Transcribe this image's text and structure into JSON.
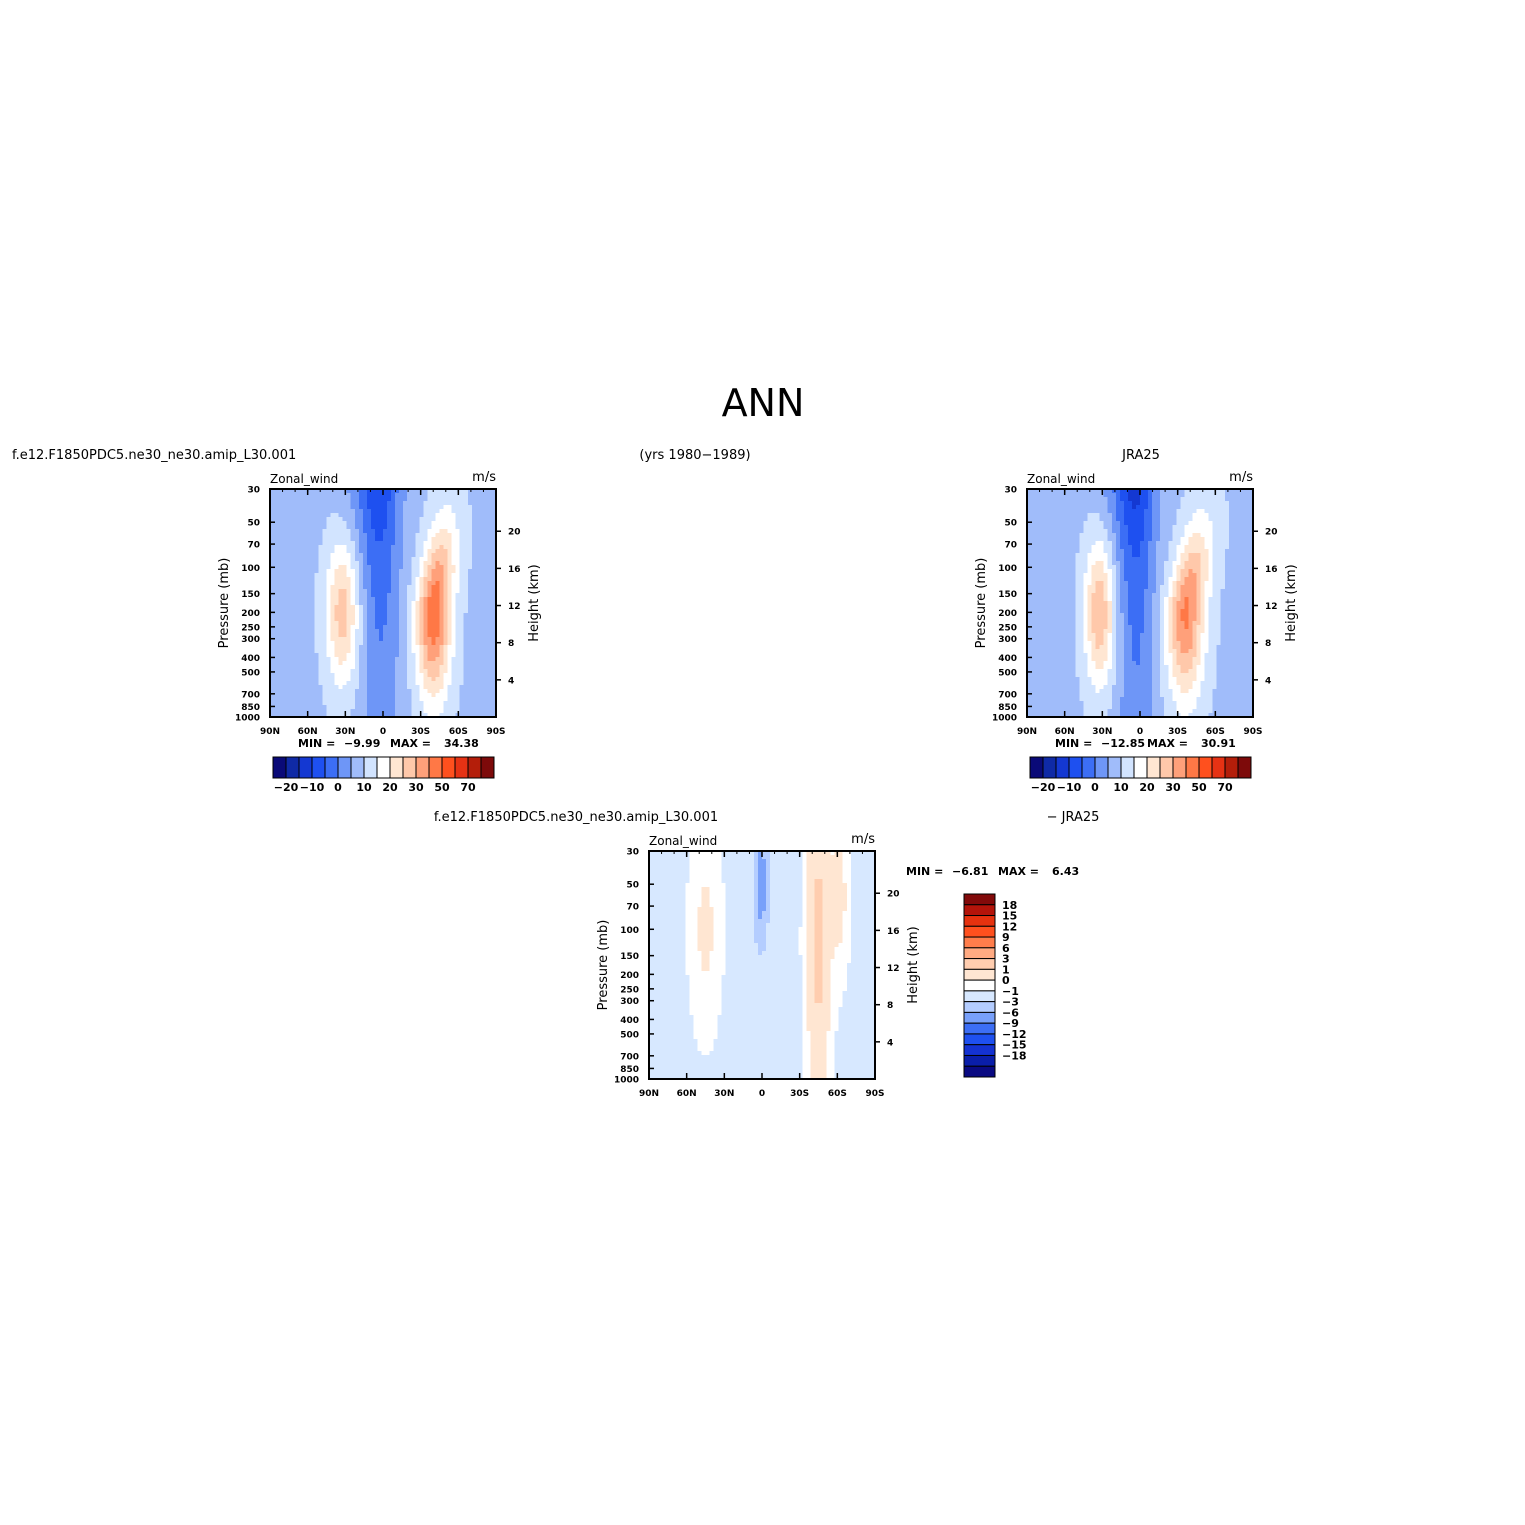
{
  "page_title": "ANN",
  "header": {
    "left_case": "f.e12.F1850PDC5.ne30_ne30.amip_L30.001",
    "center_years": "(yrs 1980−1989)",
    "right_obs": "JRA25",
    "diff_left": "f.e12.F1850PDC5.ne30_ne30.amip_L30.001",
    "diff_right": "− JRA25"
  },
  "colors": {
    "abs_palette": [
      "#0a0a78",
      "#0f2aa6",
      "#1438d2",
      "#1e50f0",
      "#3c6ef5",
      "#6e96f7",
      "#a0bcfa",
      "#d2e4ff",
      "#ffffff",
      "#ffe6d2",
      "#ffc8aa",
      "#ffa07a",
      "#ff7846",
      "#ff501e",
      "#e63214",
      "#b41e0a",
      "#7d0a0a"
    ],
    "diff_palette": [
      "#0a0a82",
      "#0a1eaa",
      "#1432d2",
      "#1e50f0",
      "#3c6ef5",
      "#78a0fa",
      "#b4cdff",
      "#d7e8ff",
      "#ffffff",
      "#ffe6d2",
      "#ffcdaf",
      "#ffaa82",
      "#ff7d4b",
      "#ff501e",
      "#e6320f",
      "#b4140a",
      "#820a0a"
    ]
  },
  "chart_data": [
    {
      "type": "heatmap",
      "name": "model",
      "field_label": "Zonal_wind",
      "units": "m/s",
      "ylabel": "Pressure (mb)",
      "ylabel_right": "Height (km)",
      "x_ticks": [
        "90N",
        "60N",
        "30N",
        "0",
        "30S",
        "60S",
        "90S"
      ],
      "y_ticks": [
        30,
        50,
        70,
        100,
        150,
        200,
        250,
        300,
        400,
        500,
        700,
        850,
        1000
      ],
      "height_ticks": [
        20,
        16,
        12,
        8,
        4
      ],
      "min_label": "MIN =",
      "min_value": "−9.99",
      "max_label": "MAX =",
      "max_value": "34.38",
      "colorbar_labels": [
        "−20",
        "−10",
        "0",
        "10",
        "20",
        "30",
        "50",
        "70"
      ],
      "levels": [
        -25,
        -20,
        -15,
        -10,
        -5,
        0,
        5,
        10,
        15,
        20,
        25,
        30,
        40,
        50,
        60,
        70
      ],
      "features": [
        {
          "kind": "base",
          "value": 4
        },
        {
          "kind": "jet",
          "lat": -40,
          "lat_spread": 14,
          "p_center": 200,
          "p_spread": 1.3,
          "amp": 30,
          "tilt_top": -52
        },
        {
          "kind": "jet",
          "lat": 32,
          "lat_spread": 13,
          "p_center": 200,
          "p_spread": 1.1,
          "amp": 19
        },
        {
          "kind": "easterly",
          "lat": 2,
          "lat_spread": 16,
          "amp": -12
        },
        {
          "kind": "easterly_top",
          "lat": 10,
          "lat_spread": 22,
          "amp": -8
        }
      ]
    },
    {
      "type": "heatmap",
      "name": "obs",
      "field_label": "Zonal_wind",
      "units": "m/s",
      "ylabel": "Pressure (mb)",
      "ylabel_right": "Height (km)",
      "x_ticks": [
        "90N",
        "60N",
        "30N",
        "0",
        "30S",
        "60S",
        "90S"
      ],
      "y_ticks": [
        30,
        50,
        70,
        100,
        150,
        200,
        250,
        300,
        400,
        500,
        700,
        850,
        1000
      ],
      "height_ticks": [
        20,
        16,
        12,
        8,
        4
      ],
      "min_label": "MIN =",
      "min_value": "−12.85",
      "max_label": "MAX =",
      "max_value": "30.91",
      "colorbar_labels": [
        "−20",
        "−10",
        "0",
        "10",
        "20",
        "30",
        "50",
        "70"
      ],
      "levels": [
        -25,
        -20,
        -15,
        -10,
        -5,
        0,
        5,
        10,
        15,
        20,
        25,
        30,
        40,
        50,
        60,
        70
      ],
      "features": [
        {
          "kind": "base",
          "value": 4
        },
        {
          "kind": "jet",
          "lat": -36,
          "lat_spread": 15,
          "p_center": 200,
          "p_spread": 1.3,
          "amp": 27,
          "tilt_top": -52
        },
        {
          "kind": "jet",
          "lat": 32,
          "lat_spread": 12,
          "p_center": 200,
          "p_spread": 1.1,
          "amp": 21
        },
        {
          "kind": "easterly",
          "lat": 3,
          "lat_spread": 15,
          "amp": -13
        },
        {
          "kind": "easterly_top",
          "lat": 10,
          "lat_spread": 22,
          "amp": -9
        }
      ]
    },
    {
      "type": "heatmap",
      "name": "difference",
      "field_label": "Zonal_wind",
      "units": "m/s",
      "ylabel": "Pressure (mb)",
      "ylabel_right": "Height (km)",
      "x_ticks": [
        "90N",
        "60N",
        "30N",
        "0",
        "30S",
        "60S",
        "90S"
      ],
      "y_ticks": [
        30,
        50,
        70,
        100,
        150,
        200,
        250,
        300,
        400,
        500,
        700,
        850,
        1000
      ],
      "height_ticks": [
        20,
        16,
        12,
        8,
        4
      ],
      "min_label": "MIN =",
      "min_value": "−6.81",
      "max_label": "MAX =",
      "max_value": "6.43",
      "colorbar_labels": [
        "18",
        "15",
        "12",
        "9",
        "6",
        "3",
        "1",
        "0",
        "−1",
        "−3",
        "−6",
        "−9",
        "−12",
        "−15",
        "−18"
      ],
      "levels": [
        -18,
        -15,
        -12,
        -9,
        -6,
        -3,
        -1,
        0,
        1,
        3,
        6,
        9,
        12,
        15,
        18
      ],
      "features": [
        {
          "kind": "base",
          "value": -0.3
        },
        {
          "kind": "jet",
          "lat": -45,
          "lat_spread": 9,
          "p_center": 120,
          "p_spread": 2.4,
          "amp": 4.0
        },
        {
          "kind": "jet",
          "lat": 45,
          "lat_spread": 12,
          "p_center": 100,
          "p_spread": 1.5,
          "amp": 1.6
        },
        {
          "kind": "jet",
          "lat": 1,
          "lat_spread": 5,
          "p_center": 50,
          "p_spread": 0.8,
          "amp": -4.5
        },
        {
          "kind": "jet",
          "lat": -62,
          "lat_spread": 7,
          "p_center": 60,
          "p_spread": 1.2,
          "amp": 1.8
        }
      ]
    }
  ]
}
